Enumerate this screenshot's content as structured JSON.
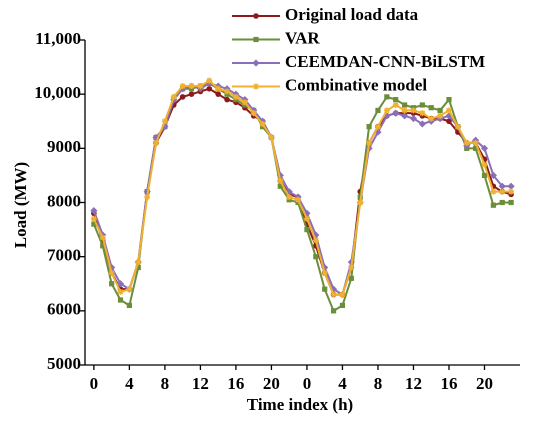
{
  "chart_data": {
    "type": "line",
    "x_label": "Time index (h)",
    "y_label": "Load (MW)",
    "x": [
      0,
      1,
      2,
      3,
      4,
      5,
      6,
      7,
      8,
      9,
      10,
      11,
      12,
      13,
      14,
      15,
      16,
      17,
      18,
      19,
      20,
      21,
      22,
      23,
      24,
      25,
      26,
      27,
      28,
      29,
      30,
      31,
      32,
      33,
      34,
      35,
      36,
      37,
      38,
      39,
      40,
      41,
      42,
      43,
      44,
      45,
      46,
      47
    ],
    "xlim": [
      -1,
      48
    ],
    "xticks": [
      0,
      4,
      8,
      12,
      16,
      20,
      {
        "value": 24,
        "label": "0"
      },
      {
        "value": 28,
        "label": "4"
      },
      {
        "value": 32,
        "label": "8"
      },
      {
        "value": 36,
        "label": "12"
      },
      {
        "value": 40,
        "label": "16"
      },
      {
        "value": 44,
        "label": "20"
      }
    ],
    "ylim": [
      5000,
      11000
    ],
    "yticks": [
      5000,
      6000,
      7000,
      8000,
      9000,
      {
        "value": 10000,
        "label": "10,000"
      },
      {
        "value": 11000,
        "label": "11,000"
      }
    ],
    "grid": false,
    "legend": "top-right",
    "series": [
      {
        "name": "Original load data",
        "color": "#8b1a1a",
        "marker": "circle",
        "values": [
          7800,
          7300,
          6700,
          6400,
          6400,
          6900,
          8200,
          9100,
          9400,
          9800,
          9950,
          10000,
          10050,
          10100,
          10000,
          9900,
          9850,
          9750,
          9600,
          9500,
          9200,
          8400,
          8150,
          8100,
          7600,
          7200,
          6700,
          6300,
          6300,
          6800,
          8200,
          9100,
          9400,
          9600,
          9650,
          9650,
          9650,
          9600,
          9550,
          9550,
          9500,
          9300,
          9100,
          9100,
          8800,
          8300,
          8200,
          8150
        ]
      },
      {
        "name": "VAR",
        "color": "#6b8e3a",
        "marker": "square",
        "values": [
          7600,
          7200,
          6500,
          6200,
          6100,
          6800,
          8200,
          9200,
          9400,
          9900,
          10100,
          10100,
          10150,
          10200,
          10100,
          10000,
          9900,
          9800,
          9700,
          9400,
          9200,
          8300,
          8050,
          8000,
          7500,
          7000,
          6400,
          6000,
          6100,
          6600,
          8100,
          9400,
          9700,
          9950,
          9900,
          9800,
          9750,
          9800,
          9750,
          9700,
          9900,
          9400,
          9000,
          9000,
          8500,
          7950,
          8000,
          8000
        ]
      },
      {
        "name": "CEEMDAN-CNN-BiLSTM",
        "color": "#8a6fb8",
        "marker": "diamond",
        "values": [
          7850,
          7400,
          6800,
          6500,
          6400,
          6900,
          8200,
          9200,
          9400,
          9900,
          10100,
          10150,
          10100,
          10200,
          10150,
          10100,
          10000,
          9900,
          9700,
          9500,
          9200,
          8500,
          8200,
          8100,
          7800,
          7400,
          6800,
          6400,
          6300,
          6900,
          8000,
          9000,
          9300,
          9600,
          9650,
          9600,
          9550,
          9450,
          9500,
          9550,
          9600,
          9400,
          9050,
          9150,
          9000,
          8500,
          8300,
          8300
        ]
      },
      {
        "name": "Combinative model",
        "color": "#f0b030",
        "marker": "star",
        "values": [
          7700,
          7350,
          6700,
          6350,
          6400,
          6900,
          8100,
          9100,
          9500,
          9950,
          10150,
          10150,
          10150,
          10250,
          10100,
          10050,
          9950,
          9850,
          9650,
          9450,
          9200,
          8400,
          8100,
          8050,
          7700,
          7300,
          6700,
          6300,
          6300,
          6800,
          8000,
          9100,
          9400,
          9700,
          9800,
          9700,
          9700,
          9650,
          9550,
          9600,
          9700,
          9400,
          9100,
          9100,
          8700,
          8200,
          8200,
          8200
        ]
      }
    ]
  }
}
